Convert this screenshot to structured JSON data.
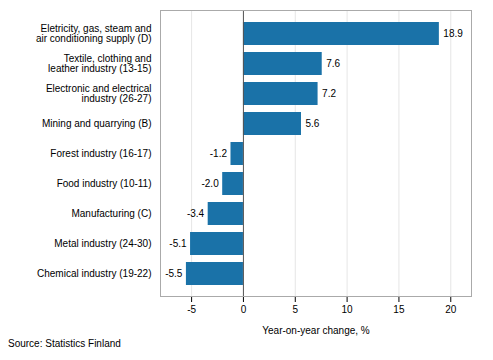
{
  "chart_data": {
    "type": "bar",
    "orientation": "horizontal",
    "categories": [
      "Chemical industry (19-22)",
      "Metal industry (24-30)",
      "Manufacturing (C)",
      "Food industry (10-11)",
      "Forest industry (16-17)",
      "Mining and quarrying (B)",
      "Electronic and electrical\nindustry (26-27)",
      "Textile, clothing and\nleather industry (13-15)",
      "Eletricity, gas, steam and\nair conditioning supply (D)"
    ],
    "values": [
      -5.5,
      -5.1,
      -3.4,
      -2.0,
      -1.2,
      5.6,
      7.2,
      7.6,
      18.9
    ],
    "value_labels": [
      "-5.5",
      "-5.1",
      "-3.4",
      "-2.0",
      "-1.2",
      "5.6",
      "7.2",
      "7.6",
      "18.9"
    ],
    "data_labels": true,
    "color": "#1a72a8",
    "xlabel": "Year-on-year change, %",
    "xlim": [
      -8,
      22
    ],
    "xticks": [
      -5,
      0,
      5,
      10,
      15,
      20
    ],
    "grid": true,
    "caption": "Source: Statistics Finland"
  }
}
